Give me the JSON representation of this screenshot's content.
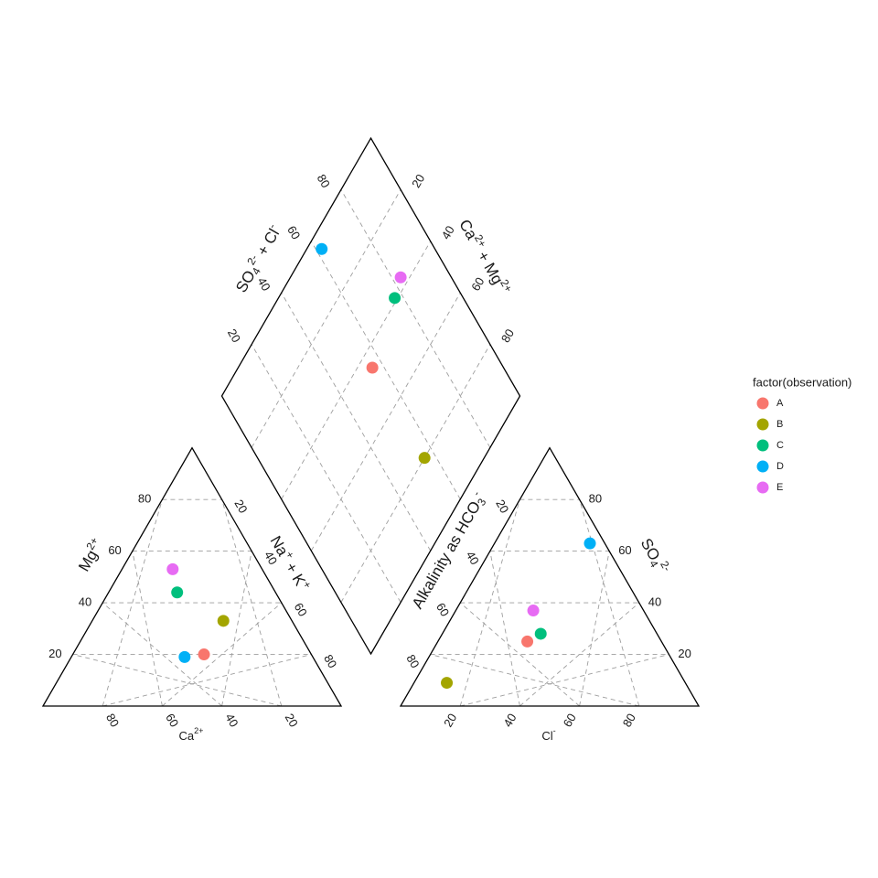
{
  "chart_data": {
    "type": "scatter",
    "subtype": "piper-diagram",
    "grid": true,
    "grid_style": "dashed",
    "grid_step": 20,
    "legend": {
      "title": "factor(observation)",
      "placement": "right",
      "entries": [
        {
          "name": "A",
          "color": "#F8766D"
        },
        {
          "name": "B",
          "color": "#A3A500"
        },
        {
          "name": "C",
          "color": "#00BF7D"
        },
        {
          "name": "D",
          "color": "#00B0F6"
        },
        {
          "name": "E",
          "color": "#E76BF3"
        }
      ]
    },
    "cation_triangle": {
      "left_axis": {
        "title_main": "Mg",
        "title_sup": "2+",
        "ticks": [
          "20",
          "40",
          "60",
          "80"
        ]
      },
      "right_axis": {
        "title_main1": "Na",
        "title_sup1": "+",
        "title_main2": " + K",
        "title_sup2": "+",
        "ticks": [
          "20",
          "40",
          "60",
          "80"
        ]
      },
      "bottom_axis": {
        "title_main": "Ca",
        "title_sup": "2+",
        "ticks": [
          "80",
          "60",
          "40",
          "20"
        ]
      }
    },
    "anion_triangle": {
      "left_axis": {
        "title_main": "Alkalinity as HCO",
        "title_sub": "3",
        "title_sup": "-",
        "ticks": [
          "20",
          "40",
          "60",
          "80"
        ]
      },
      "right_axis": {
        "title_main": "SO",
        "title_sub": "4",
        "title_sup": "2-",
        "ticks": [
          "80",
          "60",
          "40",
          "20"
        ]
      },
      "bottom_axis": {
        "title_main": "Cl",
        "title_sup": "-",
        "ticks": [
          "20",
          "40",
          "60",
          "80"
        ]
      }
    },
    "diamond": {
      "left_axis": {
        "title_main1": "SO",
        "title_sub1": "4",
        "title_sup1": "2-",
        "title_main2": " + Cl",
        "title_sup2": "-",
        "ticks": [
          "20",
          "40",
          "60",
          "80"
        ]
      },
      "right_axis": {
        "title_main1": "Ca",
        "title_sup1": "2+",
        "title_main2": " + Mg",
        "title_sup2": "2+",
        "ticks": [
          "80",
          "60",
          "40",
          "20"
        ]
      }
    },
    "points": [
      {
        "name": "A",
        "ca": 36,
        "mg": 20,
        "na_k": 44,
        "hco3": 45,
        "so4": 25,
        "cl": 30
      },
      {
        "name": "B",
        "ca": 23,
        "mg": 33,
        "na_k": 44,
        "hco3": 80,
        "so4": 9,
        "cl": 11
      },
      {
        "name": "C",
        "ca": 33,
        "mg": 44,
        "na_k": 23,
        "hco3": 39,
        "so4": 28,
        "cl": 33
      },
      {
        "name": "D",
        "ca": 43,
        "mg": 19,
        "na_k": 38,
        "hco3": 5,
        "so4": 63,
        "cl": 32
      },
      {
        "name": "E",
        "ca": 30,
        "mg": 53,
        "na_k": 17,
        "hco3": 37,
        "so4": 37,
        "cl": 26
      }
    ]
  }
}
